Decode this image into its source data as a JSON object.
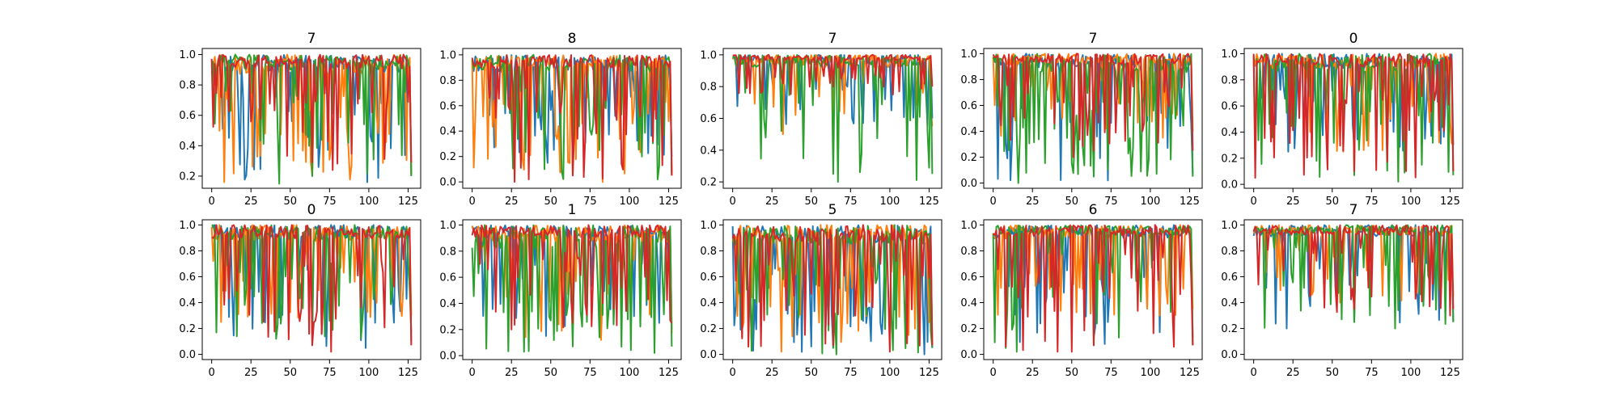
{
  "figure": {
    "grid": false,
    "legend": "none"
  },
  "chart_data": [
    {
      "type": "line",
      "title": "7",
      "xlim": [
        -6,
        133
      ],
      "ylim": [
        0.12,
        1.04
      ],
      "xticks": [
        0,
        25,
        50,
        75,
        100,
        125
      ],
      "yticks": [
        0.2,
        0.4,
        0.6,
        0.8,
        1.0
      ],
      "series": [
        {
          "color": "#1f77b4",
          "min": 0.16,
          "mean": 0.82,
          "dip": 0.22,
          "seed": 101
        },
        {
          "color": "#ff7f0e",
          "min": 0.16,
          "mean": 0.8,
          "dip": 0.24,
          "seed": 102
        },
        {
          "color": "#2ca02c",
          "min": 0.15,
          "mean": 0.84,
          "dip": 0.2,
          "seed": 103
        },
        {
          "color": "#d62728",
          "min": 0.24,
          "mean": 0.85,
          "dip": 0.22,
          "seed": 104
        }
      ]
    },
    {
      "type": "line",
      "title": "8",
      "xlim": [
        -6,
        133
      ],
      "ylim": [
        -0.05,
        1.05
      ],
      "xticks": [
        0,
        25,
        50,
        75,
        100,
        125
      ],
      "yticks": [
        0.0,
        0.2,
        0.4,
        0.6,
        0.8,
        1.0
      ],
      "series": [
        {
          "color": "#1f77b4",
          "min": 0.15,
          "mean": 0.78,
          "dip": 0.25,
          "seed": 201
        },
        {
          "color": "#ff7f0e",
          "min": 0.0,
          "mean": 0.86,
          "dip": 0.2,
          "seed": 202
        },
        {
          "color": "#2ca02c",
          "min": 0.02,
          "mean": 0.8,
          "dip": 0.27,
          "seed": 203
        },
        {
          "color": "#d62728",
          "min": 0.0,
          "mean": 0.84,
          "dip": 0.22,
          "seed": 204
        }
      ]
    },
    {
      "type": "line",
      "title": "7",
      "xlim": [
        -6,
        133
      ],
      "ylim": [
        0.16,
        1.04
      ],
      "xticks": [
        0,
        25,
        50,
        75,
        100,
        125
      ],
      "yticks": [
        0.2,
        0.4,
        0.6,
        0.8,
        1.0
      ],
      "series": [
        {
          "color": "#1f77b4",
          "min": 0.55,
          "mean": 0.9,
          "dip": 0.18,
          "seed": 301
        },
        {
          "color": "#ff7f0e",
          "min": 0.5,
          "mean": 0.88,
          "dip": 0.16,
          "seed": 302
        },
        {
          "color": "#2ca02c",
          "min": 0.2,
          "mean": 0.88,
          "dip": 0.18,
          "seed": 303
        },
        {
          "color": "#d62728",
          "min": 0.75,
          "mean": 0.95,
          "dip": 0.16,
          "seed": 304
        }
      ]
    },
    {
      "type": "line",
      "title": "7",
      "xlim": [
        -6,
        133
      ],
      "ylim": [
        -0.04,
        1.04
      ],
      "xticks": [
        0,
        25,
        50,
        75,
        100,
        125
      ],
      "yticks": [
        0.0,
        0.2,
        0.4,
        0.6,
        0.8,
        1.0
      ],
      "series": [
        {
          "color": "#1f77b4",
          "min": 0.02,
          "mean": 0.8,
          "dip": 0.25,
          "seed": 401
        },
        {
          "color": "#ff7f0e",
          "min": 0.35,
          "mean": 0.86,
          "dip": 0.2,
          "seed": 402
        },
        {
          "color": "#2ca02c",
          "min": 0.0,
          "mean": 0.78,
          "dip": 0.28,
          "seed": 403
        },
        {
          "color": "#d62728",
          "min": 0.2,
          "mean": 0.88,
          "dip": 0.22,
          "seed": 404
        }
      ]
    },
    {
      "type": "line",
      "title": "0",
      "xlim": [
        -6,
        133
      ],
      "ylim": [
        -0.03,
        1.04
      ],
      "xticks": [
        0,
        25,
        50,
        75,
        100,
        125
      ],
      "yticks": [
        0.0,
        0.2,
        0.4,
        0.6,
        0.8,
        1.0
      ],
      "series": [
        {
          "color": "#1f77b4",
          "min": 0.25,
          "mean": 0.82,
          "dip": 0.24,
          "seed": 501
        },
        {
          "color": "#ff7f0e",
          "min": 0.25,
          "mean": 0.82,
          "dip": 0.22,
          "seed": 502
        },
        {
          "color": "#2ca02c",
          "min": 0.02,
          "mean": 0.78,
          "dip": 0.28,
          "seed": 503
        },
        {
          "color": "#d62728",
          "min": 0.05,
          "mean": 0.84,
          "dip": 0.24,
          "seed": 504
        }
      ]
    },
    {
      "type": "line",
      "title": "0",
      "xlim": [
        -6,
        133
      ],
      "ylim": [
        -0.04,
        1.04
      ],
      "xticks": [
        0,
        25,
        50,
        75,
        100,
        125
      ],
      "yticks": [
        0.0,
        0.2,
        0.4,
        0.6,
        0.8,
        1.0
      ],
      "series": [
        {
          "color": "#1f77b4",
          "min": 0.05,
          "mean": 0.82,
          "dip": 0.24,
          "seed": 601
        },
        {
          "color": "#ff7f0e",
          "min": 0.25,
          "mean": 0.8,
          "dip": 0.24,
          "seed": 602
        },
        {
          "color": "#2ca02c",
          "min": 0.12,
          "mean": 0.8,
          "dip": 0.26,
          "seed": 603
        },
        {
          "color": "#d62728",
          "min": 0.02,
          "mean": 0.84,
          "dip": 0.24,
          "seed": 604
        }
      ]
    },
    {
      "type": "line",
      "title": "1",
      "xlim": [
        -6,
        133
      ],
      "ylim": [
        -0.03,
        1.04
      ],
      "xticks": [
        0,
        25,
        50,
        75,
        100,
        125
      ],
      "yticks": [
        0.0,
        0.2,
        0.4,
        0.6,
        0.8,
        1.0
      ],
      "series": [
        {
          "color": "#1f77b4",
          "min": 0.15,
          "mean": 0.84,
          "dip": 0.22,
          "seed": 701
        },
        {
          "color": "#ff7f0e",
          "min": 0.12,
          "mean": 0.8,
          "dip": 0.24,
          "seed": 702
        },
        {
          "color": "#2ca02c",
          "min": 0.02,
          "mean": 0.72,
          "dip": 0.3,
          "seed": 703
        },
        {
          "color": "#d62728",
          "min": 0.2,
          "mean": 0.86,
          "dip": 0.22,
          "seed": 704
        }
      ]
    },
    {
      "type": "line",
      "title": "5",
      "xlim": [
        -6,
        133
      ],
      "ylim": [
        -0.04,
        1.04
      ],
      "xticks": [
        0,
        25,
        50,
        75,
        100,
        125
      ],
      "yticks": [
        0.0,
        0.2,
        0.4,
        0.6,
        0.8,
        1.0
      ],
      "series": [
        {
          "color": "#1f77b4",
          "min": 0.0,
          "mean": 0.78,
          "dip": 0.3,
          "seed": 801
        },
        {
          "color": "#ff7f0e",
          "min": 0.02,
          "mean": 0.8,
          "dip": 0.28,
          "seed": 802
        },
        {
          "color": "#2ca02c",
          "min": 0.0,
          "mean": 0.76,
          "dip": 0.3,
          "seed": 803
        },
        {
          "color": "#d62728",
          "min": 0.02,
          "mean": 0.8,
          "dip": 0.3,
          "seed": 804
        }
      ]
    },
    {
      "type": "line",
      "title": "6",
      "xlim": [
        -6,
        133
      ],
      "ylim": [
        -0.04,
        1.04
      ],
      "xticks": [
        0,
        25,
        50,
        75,
        100,
        125
      ],
      "yticks": [
        0.0,
        0.2,
        0.4,
        0.6,
        0.8,
        1.0
      ],
      "series": [
        {
          "color": "#1f77b4",
          "min": 0.08,
          "mean": 0.84,
          "dip": 0.22,
          "seed": 901
        },
        {
          "color": "#ff7f0e",
          "min": 0.3,
          "mean": 0.84,
          "dip": 0.2,
          "seed": 902
        },
        {
          "color": "#2ca02c",
          "min": 0.02,
          "mean": 0.88,
          "dip": 0.18,
          "seed": 903
        },
        {
          "color": "#d62728",
          "min": 0.02,
          "mean": 0.86,
          "dip": 0.22,
          "seed": 904
        }
      ]
    },
    {
      "type": "line",
      "title": "7",
      "xlim": [
        -6,
        133
      ],
      "ylim": [
        -0.04,
        1.04
      ],
      "xticks": [
        0,
        25,
        50,
        75,
        100,
        125
      ],
      "yticks": [
        0.0,
        0.2,
        0.4,
        0.6,
        0.8,
        1.0
      ],
      "series": [
        {
          "color": "#1f77b4",
          "min": 0.2,
          "mean": 0.86,
          "dip": 0.2,
          "seed": 1001
        },
        {
          "color": "#ff7f0e",
          "min": 0.4,
          "mean": 0.88,
          "dip": 0.18,
          "seed": 1002
        },
        {
          "color": "#2ca02c",
          "min": 0.2,
          "mean": 0.9,
          "dip": 0.16,
          "seed": 1003
        },
        {
          "color": "#d62728",
          "min": 0.3,
          "mean": 0.88,
          "dip": 0.18,
          "seed": 1004
        }
      ]
    }
  ]
}
